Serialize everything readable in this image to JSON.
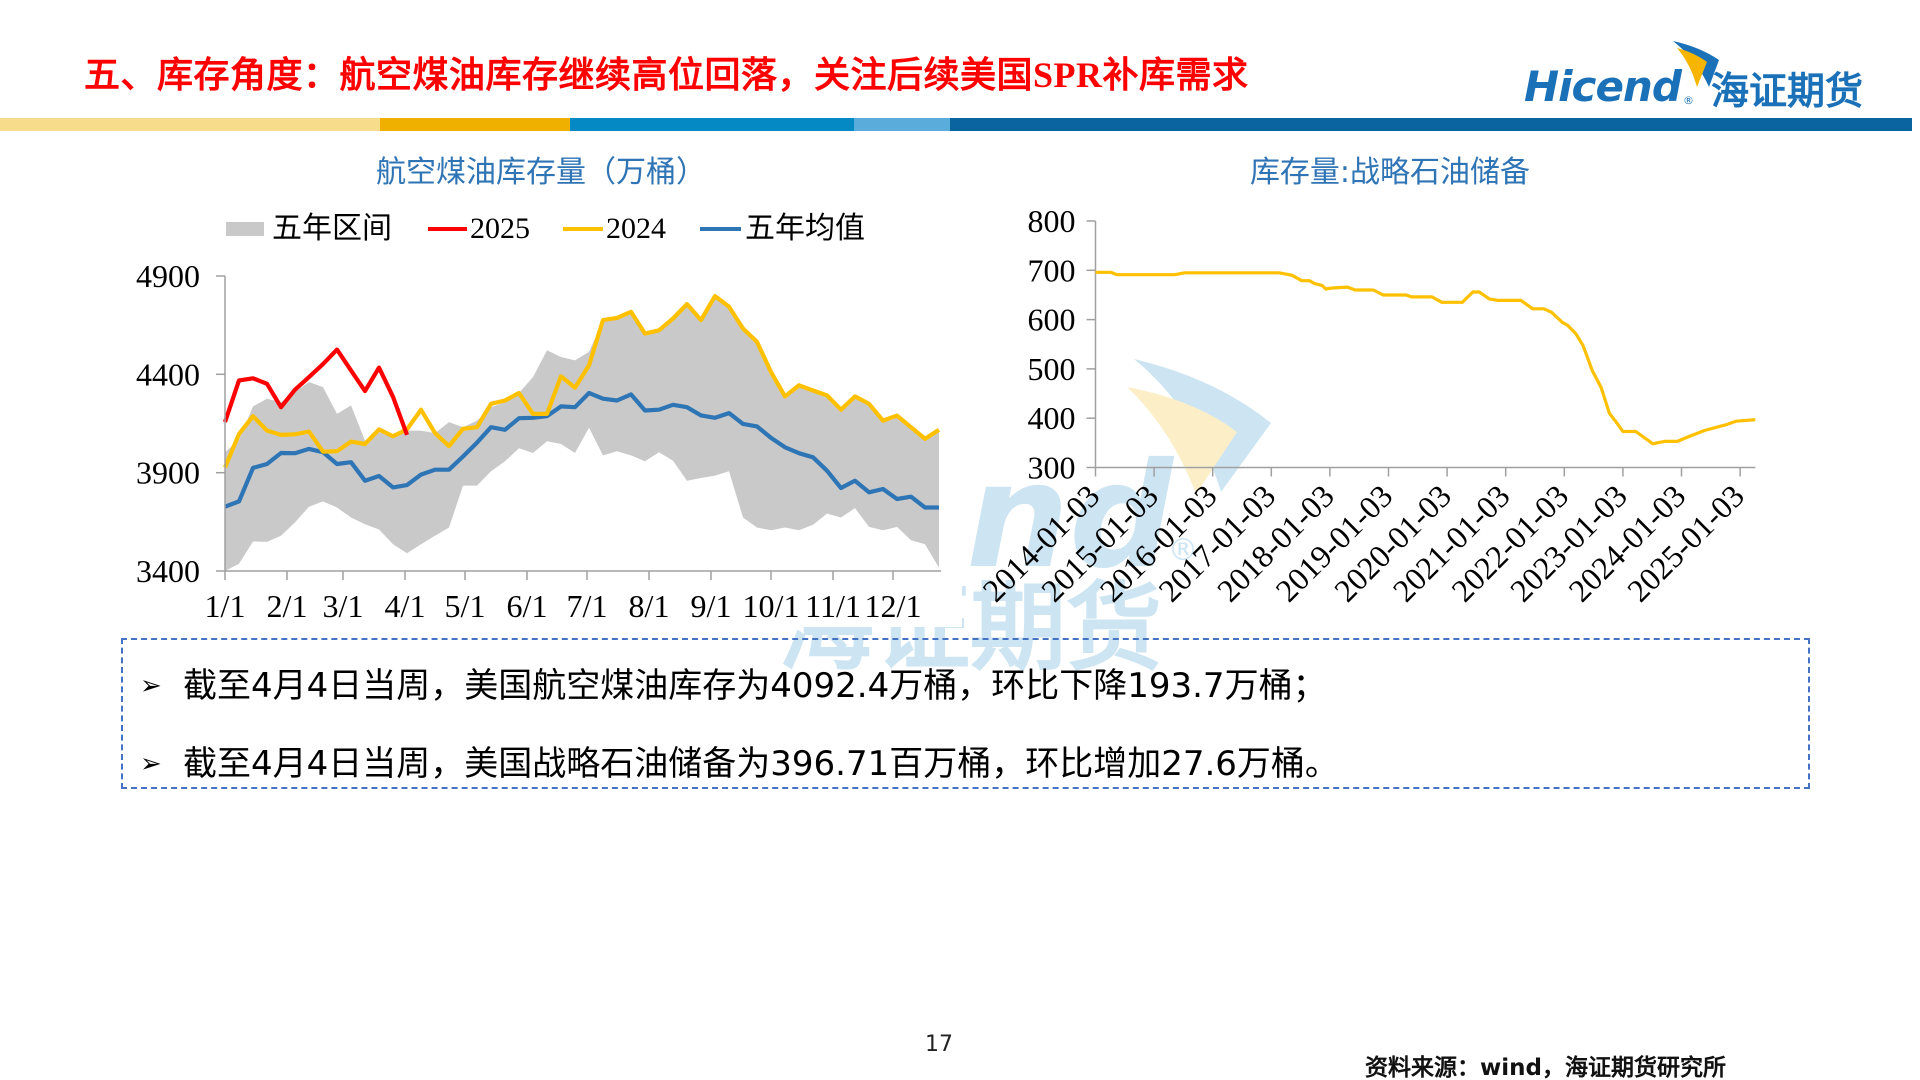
{
  "header": {
    "title": "五、库存角度：航空煤油库存继续高位回落，关注后续美国SPR补库需求",
    "title_color": "#FF0000",
    "bar_colors": [
      "#F7DC8C",
      "#F0B000",
      "#0489C4",
      "#5AACDB",
      "#0A64A0"
    ]
  },
  "logo": {
    "latin": "Hicend",
    "registered": "®",
    "cn": "海证期货",
    "blue": "#1A71B8",
    "yellow": "#F7B500"
  },
  "watermark": {
    "latin": "nd",
    "registered": "®",
    "cn": "海证期货",
    "blue": "#CDE5F3",
    "yellow": "#FCEFC8"
  },
  "chart_title_color": "#2F74B5",
  "notes": {
    "bullet_icon": "➢",
    "border_color": "#4472C4",
    "items": [
      "截至4月4日当周，美国航空煤油库存为4092.4万桶，环比下降193.7万桶；",
      "截至4月4日当周，美国战略石油储备为396.71百万桶，环比增加27.6万桶。"
    ]
  },
  "footer": {
    "page_number": "17",
    "source": "资料来源：wind，海证期货研究所"
  },
  "chart_data": [
    {
      "type": "line",
      "title": "航空煤油库存量（万桶）",
      "xlabel": "",
      "ylabel": "",
      "ylim": [
        3400,
        4900
      ],
      "yticks": [
        3400,
        3900,
        4400,
        4900
      ],
      "grid": false,
      "legend_position": "top",
      "x_unit": "week of year (step = 7 days from 1/1)",
      "days_per_step": 7,
      "x_ticks": [
        {
          "label": "1/1",
          "day": 0
        },
        {
          "label": "2/1",
          "day": 31
        },
        {
          "label": "3/1",
          "day": 59
        },
        {
          "label": "4/1",
          "day": 90
        },
        {
          "label": "5/1",
          "day": 120
        },
        {
          "label": "6/1",
          "day": 151
        },
        {
          "label": "7/1",
          "day": 181
        },
        {
          "label": "8/1",
          "day": 212
        },
        {
          "label": "9/1",
          "day": 243
        },
        {
          "label": "10/1",
          "day": 273
        },
        {
          "label": "11/1",
          "day": 304
        },
        {
          "label": "12/1",
          "day": 334
        }
      ],
      "series": [
        {
          "id": "range",
          "name": "五年区间",
          "kind": "band",
          "color": "#C9C9C9",
          "lower": [
            3400,
            3437,
            3550,
            3548,
            3579,
            3647,
            3727,
            3754,
            3723,
            3672,
            3638,
            3611,
            3536,
            3490,
            3536,
            3579,
            3621,
            3834,
            3834,
            3907,
            3958,
            4024,
            4000,
            4060,
            4046,
            4000,
            4128,
            3988,
            4009,
            3988,
            3958,
            4004,
            3961,
            3859,
            3873,
            3885,
            3907,
            3672,
            3621,
            3607,
            3621,
            3607,
            3635,
            3692,
            3672,
            3720,
            3624,
            3607,
            3624,
            3556,
            3536,
            3417
          ],
          "upper": [
            4004,
            4067,
            4237,
            4276,
            4259,
            4310,
            4361,
            4335,
            4199,
            4242,
            4063,
            4106,
            4089,
            4114,
            4114,
            4101,
            4157,
            4131,
            4165,
            4233,
            4259,
            4305,
            4386,
            4522,
            4488,
            4471,
            4514,
            4676,
            4687,
            4718,
            4607,
            4624,
            4684,
            4757,
            4676,
            4798,
            4744,
            4633,
            4565,
            4412,
            4288,
            4344,
            4318,
            4293,
            4220,
            4288,
            4250,
            4165,
            4190,
            4131,
            4072,
            4118
          ]
        },
        {
          "id": "y2025",
          "name": "2025",
          "kind": "line",
          "color": "#FF0000",
          "values": [
            4157,
            4369,
            4380,
            4352,
            4233,
            4322,
            4386,
            4452,
            4526,
            4420,
            4315,
            4434,
            4286,
            4092
          ]
        },
        {
          "id": "y2024",
          "name": "2024",
          "kind": "line",
          "color": "#FFC000",
          "values": [
            3927,
            4097,
            4187,
            4114,
            4092,
            4095,
            4109,
            4007,
            4009,
            4058,
            4046,
            4120,
            4085,
            4120,
            4220,
            4101,
            4035,
            4123,
            4131,
            4250,
            4267,
            4305,
            4199,
            4199,
            4390,
            4332,
            4446,
            4676,
            4687,
            4718,
            4607,
            4624,
            4684,
            4757,
            4676,
            4798,
            4744,
            4633,
            4565,
            4412,
            4288,
            4344,
            4318,
            4293,
            4220,
            4288,
            4250,
            4165,
            4190,
            4131,
            4072,
            4118
          ]
        },
        {
          "id": "avg5y",
          "name": "五年均值",
          "kind": "line",
          "color": "#2E75B6",
          "values": [
            3727,
            3754,
            3924,
            3944,
            4000,
            3999,
            4021,
            4004,
            3944,
            3953,
            3859,
            3883,
            3825,
            3837,
            3890,
            3915,
            3915,
            3982,
            4053,
            4131,
            4118,
            4177,
            4179,
            4187,
            4237,
            4233,
            4305,
            4276,
            4267,
            4298,
            4216,
            4220,
            4245,
            4233,
            4191,
            4179,
            4203,
            4148,
            4135,
            4077,
            4029,
            3999,
            3978,
            3910,
            3822,
            3859,
            3800,
            3817,
            3766,
            3778,
            3723,
            3723
          ]
        }
      ]
    },
    {
      "type": "line",
      "title": "库存量:战略石油储备",
      "xlabel": "",
      "ylabel": "",
      "ylim": [
        300,
        800
      ],
      "yticks": [
        300,
        400,
        500,
        600,
        700,
        800
      ],
      "xlim": [
        2014.0,
        2025.26
      ],
      "grid": false,
      "legend_position": "none",
      "x_ticks": [
        "2014-01-03",
        "2015-01-03",
        "2016-01-03",
        "2017-01-03",
        "2018-01-03",
        "2019-01-03",
        "2020-01-03",
        "2021-01-03",
        "2022-01-03",
        "2023-01-03",
        "2024-01-03",
        "2025-01-03"
      ],
      "series": [
        {
          "id": "spr",
          "name": "库存量:战略石油储备",
          "color": "#FFC000",
          "points": [
            [
              2014.0,
              696
            ],
            [
              2014.26,
              696
            ],
            [
              2014.37,
              691
            ],
            [
              2015.35,
              691
            ],
            [
              2015.52,
              695
            ],
            [
              2017.13,
              695
            ],
            [
              2017.35,
              690
            ],
            [
              2017.52,
              679
            ],
            [
              2017.65,
              679
            ],
            [
              2017.74,
              673
            ],
            [
              2017.87,
              669
            ],
            [
              2017.93,
              662
            ],
            [
              2018.04,
              664
            ],
            [
              2018.3,
              666
            ],
            [
              2018.43,
              660
            ],
            [
              2018.74,
              660
            ],
            [
              2018.91,
              650
            ],
            [
              2019.3,
              650
            ],
            [
              2019.39,
              646
            ],
            [
              2019.74,
              646
            ],
            [
              2019.91,
              635
            ],
            [
              2020.26,
              635
            ],
            [
              2020.44,
              656
            ],
            [
              2020.55,
              656
            ],
            [
              2020.72,
              642
            ],
            [
              2020.87,
              639
            ],
            [
              2021.26,
              639
            ],
            [
              2021.46,
              622
            ],
            [
              2021.65,
              622
            ],
            [
              2021.78,
              615
            ],
            [
              2021.96,
              595
            ],
            [
              2022.06,
              588
            ],
            [
              2022.2,
              571
            ],
            [
              2022.32,
              547
            ],
            [
              2022.48,
              496
            ],
            [
              2022.63,
              462
            ],
            [
              2022.77,
              410
            ],
            [
              2022.88,
              393
            ],
            [
              2023.0,
              373
            ],
            [
              2023.22,
              373
            ],
            [
              2023.51,
              348
            ],
            [
              2023.62,
              351
            ],
            [
              2023.71,
              353
            ],
            [
              2023.93,
              353
            ],
            [
              2024.09,
              361
            ],
            [
              2024.39,
              375
            ],
            [
              2024.74,
              386
            ],
            [
              2024.93,
              394
            ],
            [
              2025.26,
              397
            ]
          ]
        }
      ]
    }
  ]
}
